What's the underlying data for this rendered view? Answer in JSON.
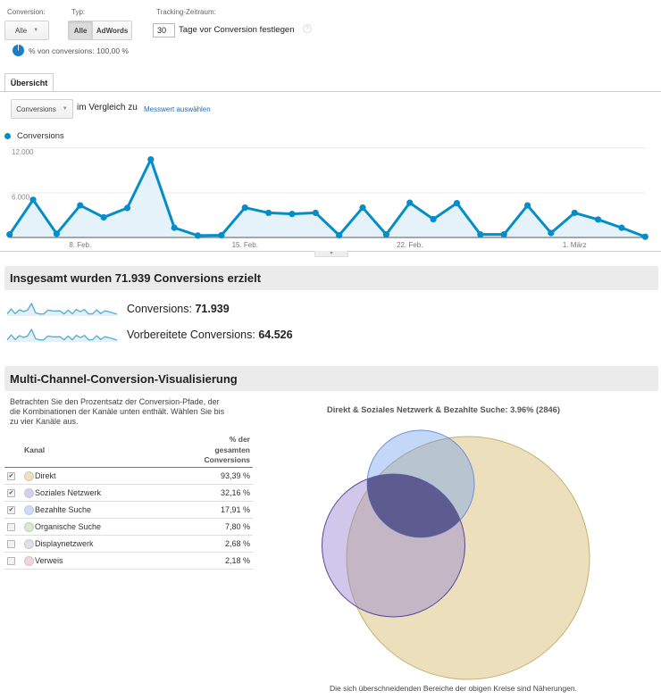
{
  "filters": {
    "conversion": {
      "label": "Conversion:",
      "value": "Alle",
      "caret": "▼"
    },
    "type": {
      "label": "Typ:",
      "options": [
        {
          "label": "Alle",
          "selected": true
        },
        {
          "label": "AdWords",
          "selected": false
        }
      ]
    },
    "tracking": {
      "label": "Tracking-Zeitraum:",
      "days_value": "30",
      "suffix": "Tage vor Conversion festlegen",
      "help": "?"
    },
    "share_text": "% von conversions: 100,00 %"
  },
  "tabs": [
    {
      "label": "Übersicht",
      "active": true
    }
  ],
  "chart_controls": {
    "metric": "Conversions",
    "caret": "▼",
    "compare_text": "im Vergleich zu",
    "select_metric_link": "Messwert auswählen",
    "legend_label": "Conversions",
    "collapse_handle": "▼"
  },
  "summary": {
    "title": "Insgesamt wurden 71.939 Conversions erzielt",
    "metrics": [
      {
        "label": "Conversions: ",
        "value": "71.939"
      },
      {
        "label": "Vorbereitete Conversions: ",
        "value": "64.526"
      }
    ]
  },
  "venn_panel": {
    "title": "Multi-Channel-Conversion-Visualisierung",
    "description": "Betrachten Sie den Prozentsatz der Conversion-Pfade, der\ndie Kombinationen der Kanäle unten enthält. Wählen Sie bis\nzu vier Kanäle aus.",
    "table": {
      "col_channel": "Kanal",
      "col_percent": "% der\ngesamten\nConversions",
      "rows": [
        {
          "label": "Direkt",
          "percent": "93,39 %",
          "checked": true,
          "color": "#efe3b6"
        },
        {
          "label": "Soziales Netzwerk",
          "percent": "32,16 %",
          "checked": true,
          "color": "#d7cbef"
        },
        {
          "label": "Bezahlte Suche",
          "percent": "17,91 %",
          "checked": true,
          "color": "#c8dcfb"
        },
        {
          "label": "Organische Suche",
          "percent": "7,80 %",
          "checked": false,
          "color": "#d6ecca"
        },
        {
          "label": "Displaynetzwerk",
          "percent": "2,68 %",
          "checked": false,
          "color": "#dbe2ec"
        },
        {
          "label": "Verweis",
          "percent": "2,18 %",
          "checked": false,
          "color": "#f2d4d9"
        }
      ]
    },
    "selection_title": "Direkt & Soziales Netzwerk & Bezahlte Suche: 3.96% (2846)",
    "footnote": "Die sich überschneidenden Bereiche der obigen Kreise sind Näherungen."
  },
  "colors": {
    "accent": "#058dc7",
    "area_fill": "#e6f2f9",
    "sparkline": "#5aaed6",
    "sparkline_fill": "#e3f0f8",
    "link": "#2a6db5",
    "pie": "#1a7dc6",
    "intersection": "#5d5b8f"
  },
  "chart_data": [
    {
      "type": "line",
      "title": "",
      "series_name": "Conversions",
      "x": [
        "5. Feb.",
        "6. Feb.",
        "7. Feb.",
        "8. Feb.",
        "9. Feb.",
        "10. Feb.",
        "11. Feb.",
        "12. Feb.",
        "13. Feb.",
        "14. Feb.",
        "15. Feb.",
        "16. Feb.",
        "17. Feb.",
        "18. Feb.",
        "19. Feb.",
        "20. Feb.",
        "21. Feb.",
        "22. Feb.",
        "23. Feb.",
        "24. Feb.",
        "25. Feb.",
        "26. Feb.",
        "27. Feb.",
        "28. Feb.",
        "1. März",
        "2. März",
        "3. März",
        "4. März"
      ],
      "values": [
        400,
        5050,
        500,
        4300,
        2700,
        3950,
        10450,
        1300,
        250,
        300,
        4000,
        3300,
        3150,
        3300,
        300,
        4000,
        400,
        4650,
        2450,
        4600,
        400,
        400,
        4300,
        600,
        3300,
        2400,
        1300,
        100
      ],
      "xlabel": "",
      "ylabel": "",
      "ylim": [
        0,
        12000
      ],
      "yticks": [
        6000,
        12000
      ],
      "ytick_labels": [
        "6.000",
        "12.000"
      ],
      "xtick_labels": [
        {
          "index": 3,
          "label": "8. Feb."
        },
        {
          "index": 10,
          "label": "15. Feb."
        },
        {
          "index": 17,
          "label": "22. Feb."
        },
        {
          "index": 24,
          "label": "1. März"
        }
      ],
      "grid": true,
      "legend": {
        "position": "top-left",
        "entries": [
          "Conversions"
        ]
      }
    },
    {
      "type": "venn",
      "title": "Direkt & Soziales Netzwerk & Bezahlte Suche: 3.96% (2846)",
      "sets": [
        {
          "name": "Direkt",
          "percent": 93.39,
          "fill": "#ece0bc",
          "stroke": "#c4b06e"
        },
        {
          "name": "Soziales Netzwerk",
          "percent": 32.16,
          "fill": "rgba(150,130,210,0.45)",
          "stroke": "#56479b"
        },
        {
          "name": "Bezahlte Suche",
          "percent": 17.91,
          "fill": "rgba(100,150,240,0.38)",
          "stroke": "#6b92d6"
        }
      ],
      "highlighted_intersection": {
        "sets": [
          "Direkt",
          "Soziales Netzwerk",
          "Bezahlte Suche"
        ],
        "percent": 3.96,
        "count": 2846
      },
      "note": "Die sich überschneidenden Bereiche der obigen Kreise sind Näherungen."
    }
  ]
}
